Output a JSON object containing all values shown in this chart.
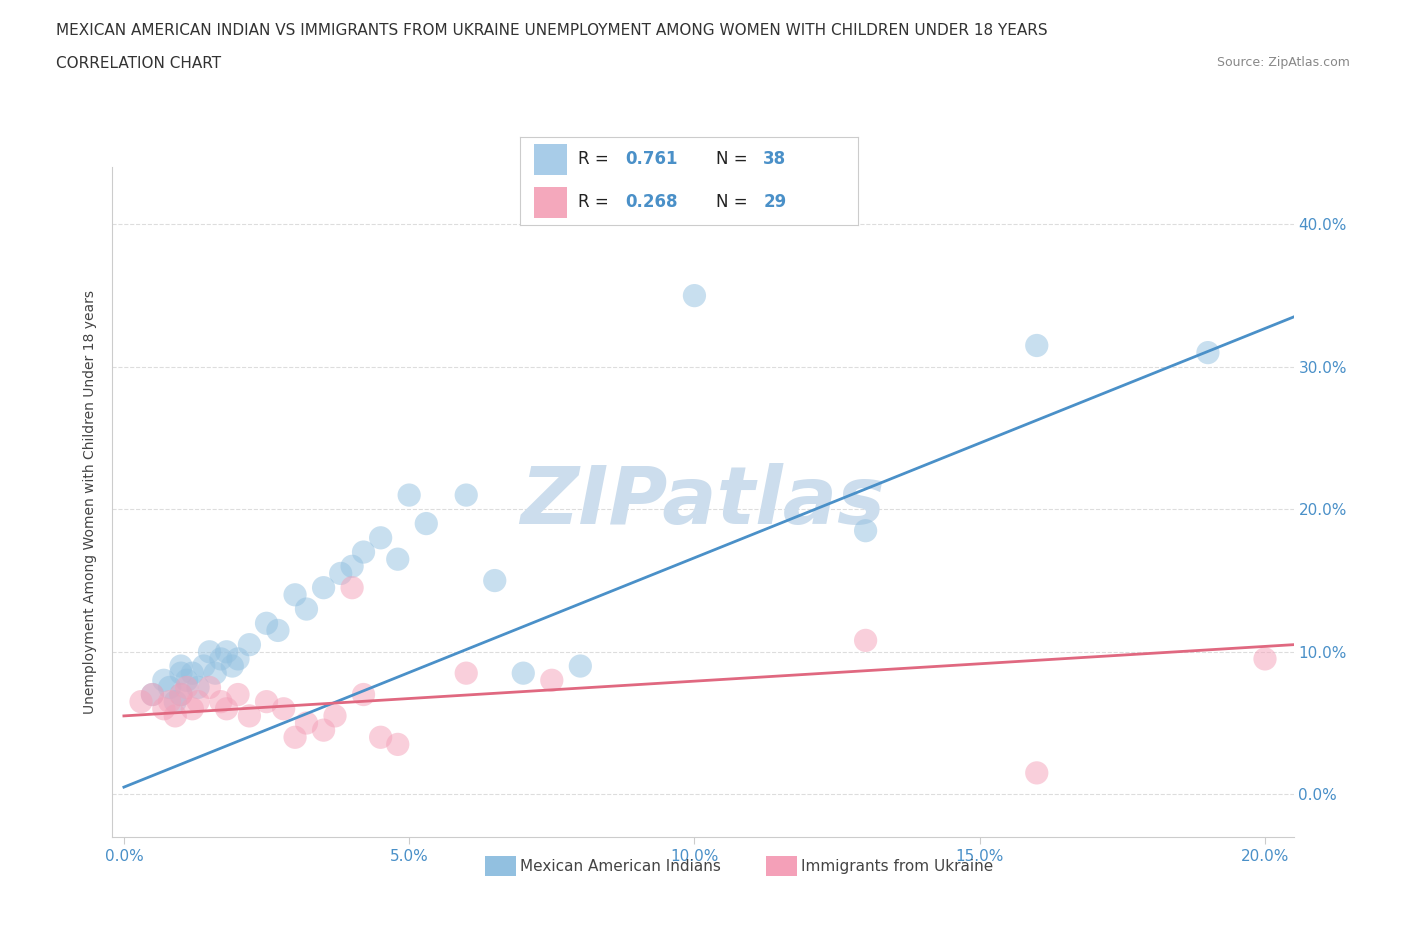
{
  "title_line1": "MEXICAN AMERICAN INDIAN VS IMMIGRANTS FROM UKRAINE UNEMPLOYMENT AMONG WOMEN WITH CHILDREN UNDER 18 YEARS",
  "title_line2": "CORRELATION CHART",
  "source": "Source: ZipAtlas.com",
  "ylabel": "Unemployment Among Women with Children Under 18 years",
  "xlim": [
    -0.002,
    0.205
  ],
  "ylim": [
    -0.03,
    0.44
  ],
  "yticks": [
    0.0,
    0.1,
    0.2,
    0.3,
    0.4
  ],
  "ytick_labels": [
    "0.0%",
    "10.0%",
    "20.0%",
    "30.0%",
    "40.0%"
  ],
  "xticks": [
    0.0,
    0.05,
    0.1,
    0.15,
    0.2
  ],
  "xtick_labels": [
    "0.0%",
    "5.0%",
    "10.0%",
    "15.0%",
    "20.0%"
  ],
  "blue_scatter": [
    [
      0.005,
      0.07
    ],
    [
      0.007,
      0.08
    ],
    [
      0.008,
      0.075
    ],
    [
      0.009,
      0.065
    ],
    [
      0.01,
      0.085
    ],
    [
      0.01,
      0.09
    ],
    [
      0.01,
      0.07
    ],
    [
      0.011,
      0.08
    ],
    [
      0.012,
      0.085
    ],
    [
      0.013,
      0.075
    ],
    [
      0.014,
      0.09
    ],
    [
      0.015,
      0.1
    ],
    [
      0.016,
      0.085
    ],
    [
      0.017,
      0.095
    ],
    [
      0.018,
      0.1
    ],
    [
      0.019,
      0.09
    ],
    [
      0.02,
      0.095
    ],
    [
      0.022,
      0.105
    ],
    [
      0.025,
      0.12
    ],
    [
      0.027,
      0.115
    ],
    [
      0.03,
      0.14
    ],
    [
      0.032,
      0.13
    ],
    [
      0.035,
      0.145
    ],
    [
      0.038,
      0.155
    ],
    [
      0.04,
      0.16
    ],
    [
      0.042,
      0.17
    ],
    [
      0.045,
      0.18
    ],
    [
      0.048,
      0.165
    ],
    [
      0.05,
      0.21
    ],
    [
      0.053,
      0.19
    ],
    [
      0.06,
      0.21
    ],
    [
      0.065,
      0.15
    ],
    [
      0.07,
      0.085
    ],
    [
      0.08,
      0.09
    ],
    [
      0.1,
      0.35
    ],
    [
      0.13,
      0.185
    ],
    [
      0.16,
      0.315
    ],
    [
      0.19,
      0.31
    ]
  ],
  "pink_scatter": [
    [
      0.003,
      0.065
    ],
    [
      0.005,
      0.07
    ],
    [
      0.007,
      0.06
    ],
    [
      0.008,
      0.065
    ],
    [
      0.009,
      0.055
    ],
    [
      0.01,
      0.07
    ],
    [
      0.011,
      0.075
    ],
    [
      0.012,
      0.06
    ],
    [
      0.013,
      0.065
    ],
    [
      0.015,
      0.075
    ],
    [
      0.017,
      0.065
    ],
    [
      0.018,
      0.06
    ],
    [
      0.02,
      0.07
    ],
    [
      0.022,
      0.055
    ],
    [
      0.025,
      0.065
    ],
    [
      0.028,
      0.06
    ],
    [
      0.03,
      0.04
    ],
    [
      0.032,
      0.05
    ],
    [
      0.035,
      0.045
    ],
    [
      0.037,
      0.055
    ],
    [
      0.04,
      0.145
    ],
    [
      0.042,
      0.07
    ],
    [
      0.045,
      0.04
    ],
    [
      0.048,
      0.035
    ],
    [
      0.06,
      0.085
    ],
    [
      0.075,
      0.08
    ],
    [
      0.13,
      0.108
    ],
    [
      0.16,
      0.015
    ],
    [
      0.2,
      0.095
    ]
  ],
  "blue_line_x": [
    0.0,
    0.205
  ],
  "blue_line_y": [
    0.005,
    0.335
  ],
  "pink_line_x": [
    0.0,
    0.205
  ],
  "pink_line_y": [
    0.055,
    0.105
  ],
  "scatter_size": 280,
  "scatter_alpha": 0.5,
  "watermark": "ZIPatlas",
  "watermark_color": "#ccdded",
  "background_color": "#ffffff",
  "grid_color": "#dddddd",
  "blue_color": "#92c0e0",
  "pink_color": "#f4a0b8",
  "blue_line_color": "#4a90c8",
  "pink_line_color": "#e06880",
  "title_color": "#333333",
  "axis_label_color": "#444444",
  "tick_color_blue": "#4a90c8",
  "source_color": "#888888",
  "legend_blue_patch": "#a8cce8",
  "legend_pink_patch": "#f4a8bc",
  "bottom_legend": [
    {
      "label": "Mexican American Indians",
      "color": "#92c0e0"
    },
    {
      "label": "Immigrants from Ukraine",
      "color": "#f4a0b8"
    }
  ]
}
